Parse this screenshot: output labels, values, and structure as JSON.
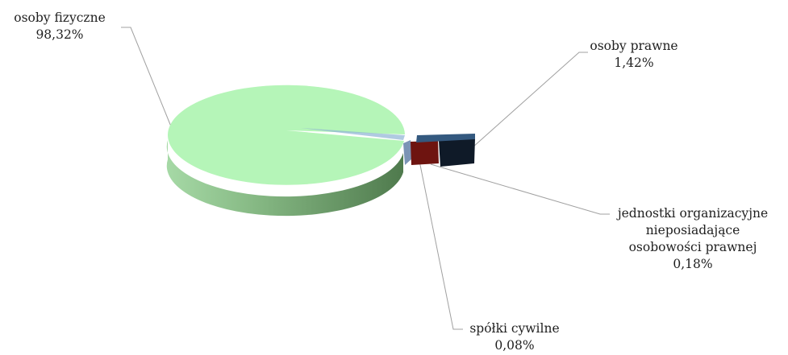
{
  "chart_data": {
    "type": "pie",
    "variant": "3d-exploded",
    "title": "",
    "slices": [
      {
        "label": "osoby fizyczne",
        "value": 98.32,
        "value_label": "98,32%",
        "color": "#b5f5b8"
      },
      {
        "label": "osoby prawne",
        "value": 1.42,
        "value_label": "1,42%",
        "color": "#1a2a40"
      },
      {
        "label_lines": [
          "jednostki organizacyjne",
          "nieposiadające",
          "osobowości prawnej"
        ],
        "value": 0.18,
        "value_label": "0,18%",
        "color": "#6e1410"
      },
      {
        "label": "spółki cywilne",
        "value": 0.08,
        "value_label": "0,08%",
        "color": "#7b93b5"
      }
    ]
  }
}
